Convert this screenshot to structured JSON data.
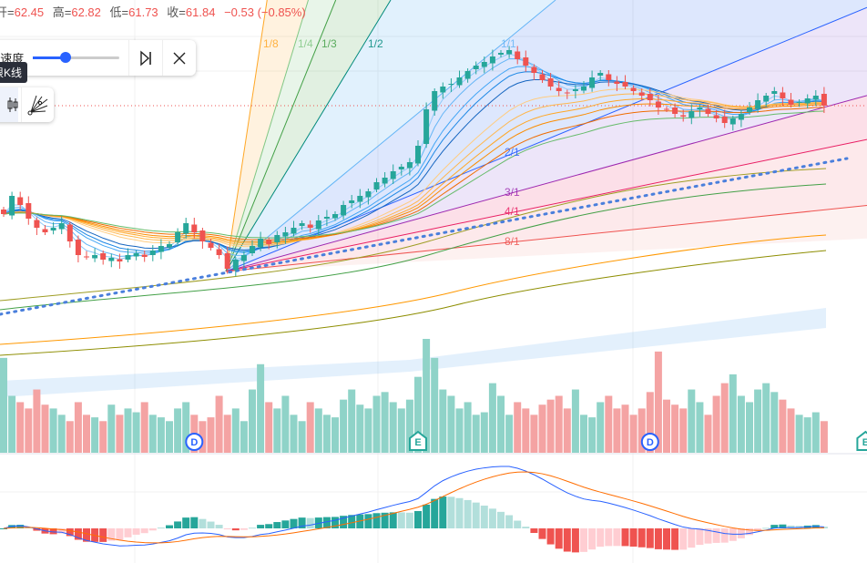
{
  "legend": {
    "open_label": "开=",
    "open": "62.45",
    "high_label": "高=",
    "high": "62.82",
    "low_label": "低=",
    "low": "61.73",
    "close_label": "收=",
    "close": "61.84",
    "change": "−0.53 (−0.85%)"
  },
  "replay": {
    "speed_label": "速度",
    "speed_value": 0.38,
    "tooltip": "下一根K线",
    "step_icon": "step-forward-icon",
    "close_icon": "close-icon"
  },
  "tools": {
    "candles_icon": "candlestick-icon",
    "fan_icon": "gann-fan-icon"
  },
  "colors": {
    "up": "#26a69a",
    "down": "#ef5350",
    "vol_up": "#8fd3c8",
    "vol_down": "#f4a3a3",
    "macd": "#2962ff",
    "signal": "#ff6d00",
    "trend": "#4a7fdc",
    "price_line": "#ef5350"
  },
  "gann": [
    {
      "label": "1/8",
      "ratio": 0.125,
      "color": "#ffa726",
      "fill": "rgba(255,167,38,0.15)"
    },
    {
      "label": "1/4",
      "ratio": 0.25,
      "color": "#81c784",
      "fill": "rgba(129,199,132,0.18)"
    },
    {
      "label": "1/3",
      "ratio": 0.3333,
      "color": "#43a047",
      "fill": "rgba(67,160,71,0.16)"
    },
    {
      "label": "1/2",
      "ratio": 0.5,
      "color": "#00897b",
      "fill": "rgba(66,165,245,0.16)"
    },
    {
      "label": "1/1",
      "ratio": 1,
      "color": "#64b5f6",
      "fill": "rgba(66,120,245,0.18)"
    },
    {
      "label": "2/1",
      "ratio": 2,
      "color": "#2962ff",
      "fill": "rgba(156,110,220,0.18)"
    },
    {
      "label": "3/1",
      "ratio": 3,
      "color": "#9c27b0",
      "fill": "rgba(240,80,130,0.18)"
    },
    {
      "label": "4/1",
      "ratio": 4,
      "color": "#e91e63",
      "fill": "rgba(240,100,110,0.14)"
    },
    {
      "label": "8/1",
      "ratio": 8,
      "color": "#ef5350",
      "fill": "rgba(240,120,110,0.10)"
    }
  ],
  "chart_data": {
    "type": "candlestick",
    "current_price": 61.84,
    "closes": [
      59.46,
      59.86,
      59.66,
      59.36,
      59.16,
      59.06,
      59.16,
      59.26,
      58.86,
      58.56,
      58.52,
      58.56,
      58.46,
      58.5,
      58.42,
      58.56,
      58.6,
      58.52,
      58.66,
      58.76,
      58.8,
      59.06,
      59.26,
      59.06,
      58.86,
      58.72,
      58.56,
      58.26,
      58.46,
      58.56,
      58.76,
      58.92,
      58.8,
      59.0,
      59.06,
      59.16,
      59.26,
      59.16,
      59.32,
      59.4,
      59.46,
      59.66,
      59.76,
      59.86,
      59.96,
      60.16,
      60.26,
      60.4,
      60.5,
      60.6,
      60.96,
      61.76,
      62.16,
      62.26,
      62.32,
      62.46,
      62.6,
      62.72,
      62.8,
      62.92,
      63.0,
      63.06,
      62.86,
      62.72,
      62.56,
      62.4,
      62.26,
      62.16,
      62.12,
      62.2,
      62.26,
      62.46,
      62.56,
      62.4,
      62.32,
      62.26,
      62.16,
      62.06,
      61.96,
      61.8,
      61.76,
      61.66,
      61.6,
      61.72,
      61.8,
      61.66,
      61.56,
      61.46,
      61.56,
      61.66,
      61.8,
      61.96,
      62.06,
      62.16,
      62.0,
      61.86,
      61.92,
      62.0,
      62.06,
      61.84
    ],
    "volumes": [
      75,
      45,
      40,
      35,
      50,
      38,
      35,
      30,
      25,
      40,
      30,
      28,
      25,
      38,
      30,
      35,
      32,
      40,
      30,
      28,
      25,
      35,
      40,
      30,
      25,
      28,
      45,
      30,
      35,
      25,
      50,
      70,
      40,
      35,
      45,
      30,
      25,
      40,
      35,
      30,
      28,
      42,
      50,
      38,
      35,
      45,
      48,
      40,
      35,
      42,
      60,
      90,
      75,
      50,
      45,
      35,
      40,
      30,
      32,
      55,
      45,
      30,
      40,
      35,
      30,
      38,
      42,
      45,
      35,
      50,
      30,
      28,
      40,
      45,
      35,
      38,
      30,
      35,
      48,
      80,
      42,
      38,
      35,
      50,
      40,
      30,
      45,
      55,
      62,
      45,
      40,
      50,
      55,
      48,
      42,
      35,
      30,
      28,
      32,
      25
    ],
    "events": [
      {
        "bar": 23,
        "label": "D"
      },
      {
        "bar": 50,
        "label": "E"
      },
      {
        "bar": 78,
        "label": "D"
      },
      {
        "bar": 104,
        "label": "E"
      }
    ]
  }
}
